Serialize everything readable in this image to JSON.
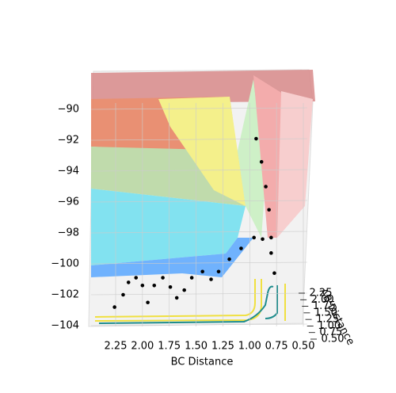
{
  "chart_data": {
    "type": "surface3d",
    "xlabel": "BC Distance",
    "ylabel": "AB Distance",
    "xlim": [
      2.25,
      0.5
    ],
    "xticks": [
      {
        "value": 2.25,
        "label": "2.25"
      },
      {
        "value": 2.0,
        "label": "2.00"
      },
      {
        "value": 1.75,
        "label": "1.75"
      },
      {
        "value": 1.5,
        "label": "1.50"
      },
      {
        "value": 1.25,
        "label": "1.25"
      },
      {
        "value": 1.0,
        "label": "1.00"
      },
      {
        "value": 0.75,
        "label": "0.75"
      },
      {
        "value": 0.5,
        "label": "0.50"
      }
    ],
    "ylim": [
      0.5,
      2.25
    ],
    "yticks": [
      {
        "value": 0.5,
        "label": "0.50"
      },
      {
        "value": 0.75,
        "label": "0.75"
      },
      {
        "value": 1.0,
        "label": "1.00"
      },
      {
        "value": 1.25,
        "label": "1.25"
      },
      {
        "value": 1.5,
        "label": "1.50"
      },
      {
        "value": 1.75,
        "label": "1.75"
      },
      {
        "value": 2.0,
        "label": "2.00"
      },
      {
        "value": 2.25,
        "label": "2.25"
      }
    ],
    "zlim": [
      -104,
      -90
    ],
    "zticks": [
      {
        "value": -104,
        "label": "−104"
      },
      {
        "value": -102,
        "label": "−102"
      },
      {
        "value": -100,
        "label": "−100"
      },
      {
        "value": -98,
        "label": "−98"
      },
      {
        "value": -96,
        "label": "−96"
      },
      {
        "value": -94,
        "label": "−94"
      },
      {
        "value": -92,
        "label": "−92"
      },
      {
        "value": -90,
        "label": "−90"
      }
    ],
    "trajectory": {
      "color": "#000000",
      "x": [
        2.26,
        2.18,
        2.13,
        2.06,
        2.0,
        1.95,
        1.89,
        1.81,
        1.74,
        1.68,
        1.61,
        1.54,
        1.44,
        1.36,
        1.29,
        1.19,
        1.08,
        0.96,
        0.88,
        0.8,
        0.77,
        0.8,
        0.82,
        0.85,
        0.89,
        0.94
      ],
      "z": [
        -102.8,
        -102.0,
        -101.2,
        -100.9,
        -101.4,
        -102.5,
        -101.4,
        -100.9,
        -101.5,
        -102.2,
        -101.7,
        -100.9,
        -100.5,
        -101.0,
        -100.5,
        -99.7,
        -99.0,
        -98.3,
        -98.4,
        -99.3,
        -100.6,
        -98.3,
        -96.5,
        -95.0,
        -93.4,
        -91.9
      ]
    }
  }
}
